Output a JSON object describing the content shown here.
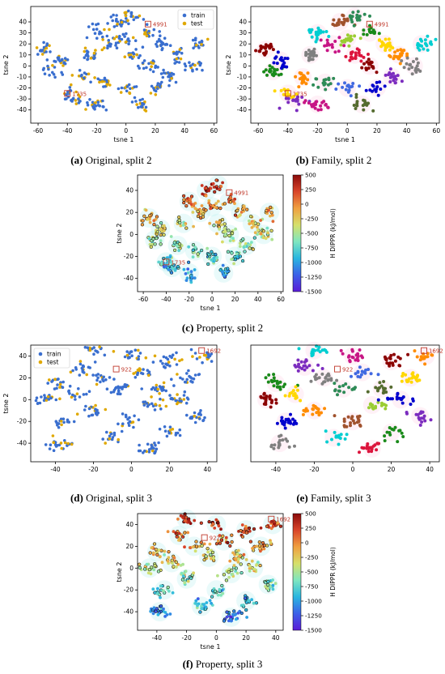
{
  "colors": {
    "train": "#3a6fcf",
    "test": "#e0a800",
    "label_box": "#c0392b",
    "label_text": "#c0392b",
    "colorbar_stops": [
      "#5b1bd8",
      "#3c60e8",
      "#29b6e0",
      "#7fe6c0",
      "#d6e06a",
      "#f0a040",
      "#d9452a",
      "#8b0b0b"
    ]
  },
  "captions": [
    {
      "letter": "(a)",
      "text": " Original, split 2"
    },
    {
      "letter": "(b)",
      "text": " Family, split 2"
    },
    {
      "letter": "(c)",
      "text": " Property, split 2"
    },
    {
      "letter": "(d)",
      "text": " Original, split 3"
    },
    {
      "letter": "(e)",
      "text": " Family, split 3"
    },
    {
      "letter": "(f)",
      "text": " Property, split 3"
    }
  ],
  "chart_data": [
    {
      "id": "a",
      "type": "scatter",
      "subtype": "original",
      "xlabel": "tsne 1",
      "ylabel": "tsne 2",
      "xlim": [
        -65,
        62
      ],
      "ylim": [
        -52,
        54
      ],
      "xticks": [
        -60,
        -40,
        -20,
        0,
        20,
        40,
        60
      ],
      "yticks": [
        -40,
        -30,
        -20,
        -10,
        0,
        10,
        20,
        30,
        40
      ],
      "legend": {
        "position": "top-right",
        "entries": [
          "train",
          "test"
        ]
      },
      "annotations": [
        {
          "text": "4991",
          "x": 15,
          "y": 38
        },
        {
          "text": "1735",
          "x": -40,
          "y": -25
        }
      ],
      "clusters": [
        [
          -55,
          15
        ],
        [
          -50,
          -5
        ],
        [
          -45,
          5
        ],
        [
          -40,
          -25
        ],
        [
          -35,
          -30
        ],
        [
          -30,
          -10
        ],
        [
          -25,
          10
        ],
        [
          -20,
          30
        ],
        [
          -15,
          -15
        ],
        [
          -10,
          20
        ],
        [
          -5,
          40
        ],
        [
          0,
          -20
        ],
        [
          0,
          25
        ],
        [
          5,
          10
        ],
        [
          10,
          -35
        ],
        [
          15,
          0
        ],
        [
          15,
          30
        ],
        [
          20,
          -20
        ],
        [
          25,
          20
        ],
        [
          30,
          -10
        ],
        [
          35,
          10
        ],
        [
          45,
          0
        ],
        [
          50,
          20
        ],
        [
          5,
          45
        ],
        [
          -20,
          -35
        ]
      ],
      "legend_labels": {
        "train": "train",
        "test": "test"
      }
    },
    {
      "id": "b",
      "type": "scatter",
      "subtype": "family",
      "xlabel": "tsne 1",
      "ylabel": "tsne 2",
      "xlim": [
        -65,
        62
      ],
      "ylim": [
        -52,
        54
      ],
      "xticks": [
        -60,
        -40,
        -20,
        0,
        20,
        40,
        60
      ],
      "yticks": [
        -40,
        -30,
        -20,
        -10,
        0,
        10,
        20,
        30,
        40
      ],
      "annotations": [
        {
          "text": "4991",
          "x": 15,
          "y": 38
        },
        {
          "text": "1735",
          "x": -40,
          "y": -25
        }
      ],
      "clusters": [
        [
          -55,
          15
        ],
        [
          -50,
          -5
        ],
        [
          -45,
          5
        ],
        [
          -40,
          -25
        ],
        [
          -35,
          -30
        ],
        [
          -30,
          -10
        ],
        [
          -25,
          10
        ],
        [
          -20,
          30
        ],
        [
          -15,
          -15
        ],
        [
          -10,
          20
        ],
        [
          -5,
          40
        ],
        [
          0,
          -20
        ],
        [
          0,
          25
        ],
        [
          5,
          10
        ],
        [
          10,
          -35
        ],
        [
          15,
          0
        ],
        [
          15,
          30
        ],
        [
          20,
          -20
        ],
        [
          25,
          20
        ],
        [
          30,
          -10
        ],
        [
          35,
          10
        ],
        [
          45,
          0
        ],
        [
          50,
          20
        ],
        [
          5,
          45
        ],
        [
          -20,
          -35
        ]
      ]
    },
    {
      "id": "c",
      "type": "scatter",
      "subtype": "property",
      "xlabel": "tsne 1",
      "ylabel": "tsne 2",
      "xlim": [
        -65,
        62
      ],
      "ylim": [
        -52,
        54
      ],
      "xticks": [
        -60,
        -40,
        -20,
        0,
        20,
        40,
        60
      ],
      "yticks": [
        -40,
        -20,
        0,
        20,
        40
      ],
      "annotations": [
        {
          "text": "4991",
          "x": 15,
          "y": 38
        },
        {
          "text": "1735",
          "x": -40,
          "y": -25
        }
      ],
      "colorbar": {
        "label": "H DIPPR (kJ/mol)",
        "min": -1500,
        "max": 500,
        "ticks": [
          500,
          250,
          0,
          -250,
          -500,
          -750,
          -1000,
          -1250,
          -1500
        ]
      },
      "clusters": [
        [
          -55,
          15
        ],
        [
          -50,
          -5
        ],
        [
          -45,
          5
        ],
        [
          -40,
          -25
        ],
        [
          -35,
          -30
        ],
        [
          -30,
          -10
        ],
        [
          -25,
          10
        ],
        [
          -20,
          30
        ],
        [
          -15,
          -15
        ],
        [
          -10,
          20
        ],
        [
          -5,
          40
        ],
        [
          0,
          -20
        ],
        [
          0,
          25
        ],
        [
          5,
          10
        ],
        [
          10,
          -35
        ],
        [
          15,
          0
        ],
        [
          15,
          30
        ],
        [
          20,
          -20
        ],
        [
          25,
          20
        ],
        [
          30,
          -10
        ],
        [
          35,
          10
        ],
        [
          45,
          0
        ],
        [
          50,
          20
        ],
        [
          5,
          45
        ],
        [
          -20,
          -35
        ]
      ]
    },
    {
      "id": "d",
      "type": "scatter",
      "subtype": "original",
      "xlabel": "",
      "ylabel": "tsne 2",
      "xlim": [
        -53,
        45
      ],
      "ylim": [
        -57,
        50
      ],
      "xticks": [
        -40,
        -20,
        0,
        20,
        40
      ],
      "yticks": [
        -40,
        -20,
        0,
        20,
        40
      ],
      "legend": {
        "position": "top-left",
        "entries": [
          "train",
          "test"
        ]
      },
      "annotations": [
        {
          "text": "1692",
          "x": 37,
          "y": 45
        },
        {
          "text": "922",
          "x": -8,
          "y": 28
        }
      ],
      "clusters": [
        [
          -45,
          0
        ],
        [
          -40,
          15
        ],
        [
          -35,
          -20
        ],
        [
          -30,
          5
        ],
        [
          -25,
          30
        ],
        [
          -20,
          -10
        ],
        [
          -15,
          20
        ],
        [
          -10,
          -35
        ],
        [
          -5,
          10
        ],
        [
          0,
          40
        ],
        [
          0,
          -20
        ],
        [
          5,
          25
        ],
        [
          10,
          -5
        ],
        [
          10,
          -45
        ],
        [
          15,
          10
        ],
        [
          20,
          35
        ],
        [
          20,
          -30
        ],
        [
          25,
          0
        ],
        [
          30,
          20
        ],
        [
          35,
          -15
        ],
        [
          38,
          40
        ],
        [
          -38,
          -40
        ],
        [
          -20,
          45
        ]
      ],
      "legend_labels": {
        "train": "train",
        "test": "test"
      }
    },
    {
      "id": "e",
      "type": "scatter",
      "subtype": "family",
      "xlabel": "",
      "ylabel": "",
      "xlim": [
        -53,
        45
      ],
      "ylim": [
        -57,
        50
      ],
      "xticks": [
        -40,
        -20,
        0,
        20,
        40
      ],
      "yticks": [],
      "annotations": [
        {
          "text": "1692",
          "x": 37,
          "y": 45
        },
        {
          "text": "922",
          "x": -8,
          "y": 28
        }
      ],
      "clusters": [
        [
          -45,
          0
        ],
        [
          -40,
          15
        ],
        [
          -35,
          -20
        ],
        [
          -30,
          5
        ],
        [
          -25,
          30
        ],
        [
          -20,
          -10
        ],
        [
          -15,
          20
        ],
        [
          -10,
          -35
        ],
        [
          -5,
          10
        ],
        [
          0,
          40
        ],
        [
          0,
          -20
        ],
        [
          5,
          25
        ],
        [
          10,
          -5
        ],
        [
          10,
          -45
        ],
        [
          15,
          10
        ],
        [
          20,
          35
        ],
        [
          20,
          -30
        ],
        [
          25,
          0
        ],
        [
          30,
          20
        ],
        [
          35,
          -15
        ],
        [
          38,
          40
        ],
        [
          -38,
          -40
        ],
        [
          -20,
          45
        ]
      ]
    },
    {
      "id": "f",
      "type": "scatter",
      "subtype": "property",
      "xlabel": "tsne 1",
      "ylabel": "tsne 2",
      "xlim": [
        -53,
        45
      ],
      "ylim": [
        -57,
        50
      ],
      "xticks": [
        -40,
        -20,
        0,
        20,
        40
      ],
      "yticks": [
        -40,
        -20,
        0,
        20,
        40
      ],
      "annotations": [
        {
          "text": "1692",
          "x": 37,
          "y": 45
        },
        {
          "text": "922",
          "x": -8,
          "y": 28
        }
      ],
      "colorbar": {
        "label": "H DIPPR (kJ/mol)",
        "min": -1500,
        "max": 500,
        "ticks": [
          500,
          250,
          0,
          -250,
          -500,
          -750,
          -1000,
          -1250,
          -1500
        ]
      },
      "clusters": [
        [
          -45,
          0
        ],
        [
          -40,
          15
        ],
        [
          -35,
          -20
        ],
        [
          -30,
          5
        ],
        [
          -25,
          30
        ],
        [
          -20,
          -10
        ],
        [
          -15,
          20
        ],
        [
          -10,
          -35
        ],
        [
          -5,
          10
        ],
        [
          0,
          40
        ],
        [
          0,
          -20
        ],
        [
          5,
          25
        ],
        [
          10,
          -5
        ],
        [
          10,
          -45
        ],
        [
          15,
          10
        ],
        [
          20,
          35
        ],
        [
          20,
          -30
        ],
        [
          25,
          0
        ],
        [
          30,
          20
        ],
        [
          35,
          -15
        ],
        [
          38,
          40
        ],
        [
          -38,
          -40
        ],
        [
          -20,
          45
        ]
      ]
    }
  ]
}
